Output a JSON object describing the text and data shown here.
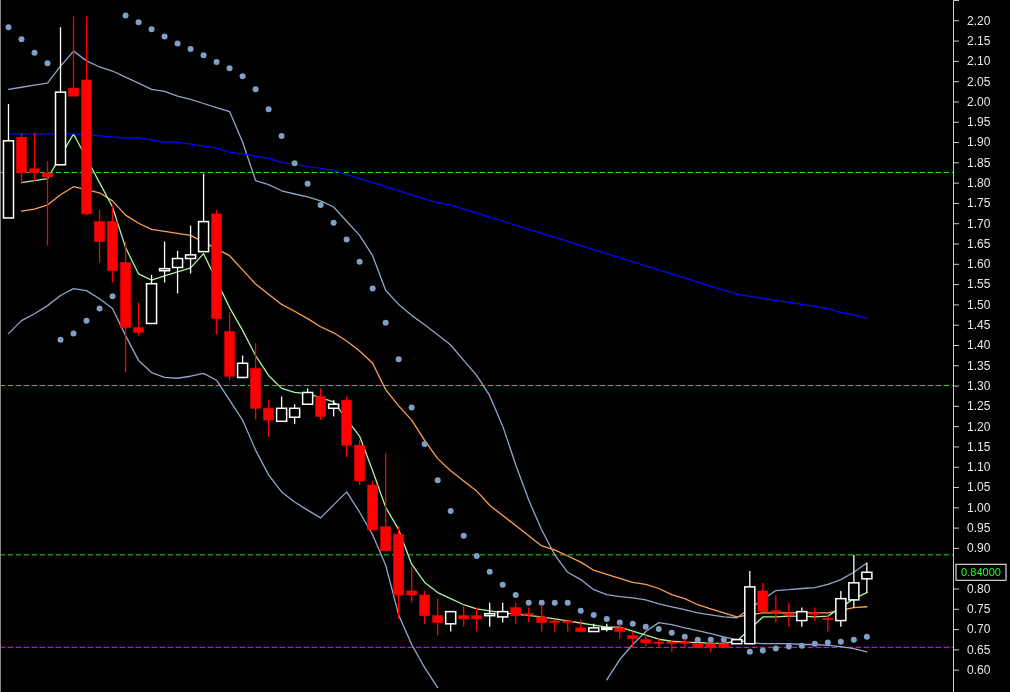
{
  "chart_data": {
    "type": "candlestick",
    "categories": [
      null,
      null,
      null,
      null,
      null,
      null,
      null,
      null,
      null,
      null,
      null,
      null,
      null,
      null,
      null,
      null,
      null,
      null,
      null,
      null,
      null,
      null,
      null,
      null,
      null,
      null,
      null,
      null,
      null,
      null,
      null,
      null,
      null,
      null,
      null,
      null,
      null,
      null,
      null,
      null,
      null,
      null,
      null,
      null,
      null,
      null,
      null,
      null,
      null,
      null,
      null,
      null,
      null,
      null,
      null,
      null,
      null,
      null,
      null,
      null,
      null,
      null,
      null,
      null,
      null,
      null,
      null
    ],
    "ohlc": [
      [
        1.713,
        1.994,
        1.713,
        1.903
      ],
      [
        1.912,
        1.922,
        1.797,
        1.824
      ],
      [
        1.834,
        1.922,
        1.804,
        1.824
      ],
      [
        1.824,
        1.853,
        1.645,
        1.814
      ],
      [
        1.844,
        2.183,
        1.844,
        2.023
      ],
      [
        2.033,
        2.21,
        2.013,
        2.013
      ],
      [
        2.053,
        2.21,
        1.72,
        1.723
      ],
      [
        1.704,
        1.733,
        1.603,
        1.655
      ],
      [
        1.704,
        1.743,
        1.554,
        1.583
      ],
      [
        1.603,
        1.655,
        1.333,
        1.443
      ],
      [
        1.443,
        1.504,
        1.423,
        1.431
      ],
      [
        1.453,
        1.573,
        1.453,
        1.551
      ],
      [
        1.583,
        1.655,
        1.554,
        1.588
      ],
      [
        1.591,
        1.632,
        1.527,
        1.613
      ],
      [
        1.613,
        1.694,
        1.576,
        1.622
      ],
      [
        1.63,
        1.822,
        1.63,
        1.704
      ],
      [
        1.723,
        1.733,
        1.426,
        1.465
      ],
      [
        1.433,
        1.482,
        1.313,
        1.323
      ],
      [
        1.32,
        1.374,
        1.32,
        1.355
      ],
      [
        1.342,
        1.404,
        1.217,
        1.244
      ],
      [
        1.244,
        1.264,
        1.173,
        1.215
      ],
      [
        1.212,
        1.273,
        1.212,
        1.244
      ],
      [
        1.222,
        1.254,
        1.205,
        1.244
      ],
      [
        1.254,
        1.293,
        1.254,
        1.283
      ],
      [
        1.273,
        1.293,
        1.215,
        1.224
      ],
      [
        1.244,
        1.264,
        1.224,
        1.254
      ],
      [
        1.264,
        1.273,
        1.124,
        1.153
      ],
      [
        1.153,
        1.165,
        1.055,
        1.065
      ],
      [
        1.055,
        1.065,
        0.944,
        0.944
      ],
      [
        0.952,
        1.133,
        0.893,
        0.893
      ],
      [
        0.934,
        0.954,
        0.725,
        0.784
      ],
      [
        0.794,
        0.853,
        0.765,
        0.784
      ],
      [
        0.784,
        0.794,
        0.713,
        0.733
      ],
      [
        0.733,
        0.775,
        0.684,
        0.716
      ],
      [
        0.713,
        0.743,
        0.694,
        0.743
      ],
      [
        0.733,
        0.76,
        0.706,
        0.725
      ],
      [
        0.733,
        0.753,
        0.694,
        0.725
      ],
      [
        0.733,
        0.765,
        0.706,
        0.738
      ],
      [
        0.73,
        0.765,
        0.716,
        0.743
      ],
      [
        0.753,
        0.765,
        0.713,
        0.733
      ],
      [
        0.738,
        0.753,
        0.716,
        0.735
      ],
      [
        0.73,
        0.76,
        0.694,
        0.716
      ],
      [
        0.72,
        0.725,
        0.694,
        0.718
      ],
      [
        0.72,
        0.723,
        0.694,
        0.718
      ],
      [
        0.703,
        0.723,
        0.694,
        0.694
      ],
      [
        0.694,
        0.713,
        0.694,
        0.703
      ],
      [
        0.701,
        0.713,
        0.694,
        0.703
      ],
      [
        0.703,
        0.713,
        0.676,
        0.694
      ],
      [
        0.684,
        0.694,
        0.654,
        0.676
      ],
      [
        0.674,
        0.686,
        0.657,
        0.666
      ],
      [
        0.668,
        0.676,
        0.654,
        0.666
      ],
      [
        0.668,
        0.674,
        0.644,
        0.666
      ],
      [
        0.668,
        0.676,
        0.654,
        0.666
      ],
      [
        0.664,
        0.664,
        0.654,
        0.654
      ],
      [
        0.664,
        0.664,
        0.644,
        0.654
      ],
      [
        0.664,
        0.664,
        0.654,
        0.654
      ],
      [
        0.664,
        0.676,
        0.664,
        0.674
      ],
      [
        0.664,
        0.843,
        0.664,
        0.804
      ],
      [
        0.794,
        0.814,
        0.743,
        0.743
      ],
      [
        0.745,
        0.784,
        0.716,
        0.743
      ],
      [
        0.738,
        0.765,
        0.706,
        0.735
      ],
      [
        0.721,
        0.753,
        0.706,
        0.743
      ],
      [
        0.74,
        0.753,
        0.72,
        0.738
      ],
      [
        0.727,
        0.735,
        0.694,
        0.725
      ],
      [
        0.721,
        0.794,
        0.706,
        0.775
      ],
      [
        0.772,
        0.883,
        0.753,
        0.814
      ],
      [
        0.824,
        0.863,
        0.789,
        0.84
      ]
    ],
    "colors": [
      "#ffffff",
      "#ff0000",
      "#ff0000",
      "#ff0000",
      "#ffffff",
      "#ff0000",
      "#ff0000",
      "#ff0000",
      "#ff0000",
      "#ff0000",
      "#ff0000",
      "#ffffff",
      "#ffffff",
      "#ffffff",
      "#ffffff",
      "#ffffff",
      "#ff0000",
      "#ff0000",
      "#ffffff",
      "#ff0000",
      "#ff0000",
      "#ffffff",
      "#ffffff",
      "#ffffff",
      "#ff0000",
      "#ffffff",
      "#ff0000",
      "#ff0000",
      "#ff0000",
      "#ff0000",
      "#ff0000",
      "#ff0000",
      "#ff0000",
      "#ff0000",
      "#ffffff",
      "#ff0000",
      "#ff0000",
      "#ffffff",
      "#ffffff",
      "#ff0000",
      "#ff0000",
      "#ff0000",
      "#ff0000",
      "#ff0000",
      "#ff0000",
      "#ffffff",
      "#ffffff",
      "#ff0000",
      "#ff0000",
      "#ff0000",
      "#ff0000",
      "#ff0000",
      "#ff0000",
      "#ff0000",
      "#ff0000",
      "#ff0000",
      "#ffffff",
      "#ffffff",
      "#ff0000",
      "#ff0000",
      "#ff0000",
      "#ffffff",
      "#ff0000",
      "#ff0000",
      "#ffffff",
      "#ffffff",
      "#ffffff"
    ],
    "series": [
      {
        "type": "line",
        "color": "#8ea6c8",
        "values": [
          2.03,
          2.035,
          2.04,
          2.045,
          2.087,
          2.124,
          2.1,
          2.085,
          2.075,
          2.06,
          2.045,
          2.03,
          2.025,
          2.013,
          2.005,
          1.995,
          1.985,
          1.975,
          1.9,
          1.805,
          1.795,
          1.78,
          1.772,
          1.765,
          1.755,
          1.74,
          1.705,
          1.67,
          1.62,
          1.535,
          1.5,
          1.473,
          1.45,
          1.425,
          1.4,
          1.362,
          1.325,
          1.275,
          1.2,
          1.105,
          1.018,
          0.944,
          0.883,
          0.84,
          0.822,
          0.797,
          0.785,
          0.78,
          0.777,
          0.772,
          0.762,
          0.755,
          0.748,
          0.74,
          0.735,
          0.73,
          0.728,
          null,
          null,
          0.795,
          0.797,
          0.8,
          0.802,
          0.81,
          0.822,
          0.84,
          0.863
        ]
      },
      {
        "type": "line",
        "color": "#8ea6c8",
        "values": [
          1.428,
          1.46,
          1.477,
          1.497,
          1.522,
          1.539,
          1.534,
          1.514,
          1.49,
          1.423,
          1.362,
          1.332,
          1.32,
          1.318,
          1.323,
          1.33,
          1.313,
          1.264,
          1.215,
          1.141,
          1.08,
          1.038,
          1.013,
          0.993,
          0.974,
          1.006,
          1.038,
          0.988,
          0.932,
          0.858,
          0.735,
          0.662,
          0.605,
          0.556,
          null,
          null,
          null,
          null,
          null,
          null,
          null,
          null,
          null,
          null,
          null,
          null,
          0.575,
          0.625,
          0.662,
          0.694,
          0.716,
          0.711,
          0.703,
          0.696,
          0.689,
          0.681,
          0.674,
          0.666,
          0.664,
          0.664,
          0.664,
          0.662,
          0.662,
          0.66,
          0.657,
          0.652,
          0.644
        ]
      },
      {
        "type": "line",
        "color": "#ff9f50",
        "values": [
          null,
          1.73,
          1.735,
          1.745,
          1.77,
          1.79,
          null,
          1.775,
          1.755,
          1.72,
          1.7,
          1.685,
          1.68,
          1.675,
          1.67,
          null,
          null,
          1.62,
          1.585,
          1.55,
          1.525,
          1.5,
          1.483,
          1.465,
          1.445,
          1.43,
          1.41,
          1.385,
          1.355,
          1.29,
          1.25,
          1.215,
          1.165,
          1.12,
          1.09,
          1.065,
          1.04,
          1.005,
          0.98,
          0.955,
          0.93,
          0.905,
          0.895,
          0.88,
          0.865,
          0.845,
          0.835,
          0.825,
          0.815,
          0.81,
          0.8,
          0.785,
          0.775,
          0.76,
          0.75,
          0.74,
          0.73,
          null,
          0.74,
          0.74,
          0.74,
          0.74,
          0.74,
          0.74,
          null,
          0.753,
          0.755
        ]
      },
      {
        "type": "line",
        "color": "#a8f59a",
        "values": [
          null,
          1.8,
          1.805,
          1.81,
          null,
          1.92,
          null,
          1.8,
          1.74,
          1.64,
          1.575,
          1.56,
          1.57,
          1.58,
          1.59,
          1.625,
          null,
          1.492,
          1.436,
          1.374,
          1.325,
          1.293,
          1.283,
          1.28,
          null,
          1.26,
          null,
          1.175,
          1.09,
          1.0,
          0.945,
          0.86,
          0.815,
          0.79,
          0.775,
          0.76,
          0.75,
          0.745,
          0.74,
          null,
          null,
          0.73,
          0.725,
          0.72,
          0.715,
          0.71,
          0.705,
          0.705,
          0.695,
          0.685,
          0.675,
          0.67,
          0.668,
          0.667,
          0.665,
          0.665,
          0.67,
          null,
          0.73,
          0.73,
          0.732,
          0.732,
          0.73,
          0.732,
          null,
          0.775,
          0.79
        ]
      },
      {
        "type": "line",
        "color": "#0000ff",
        "values": [
          1.92,
          1.92,
          1.92,
          1.92,
          null,
          1.92,
          null,
          1.915,
          1.913,
          1.91,
          1.91,
          1.905,
          1.9,
          1.9,
          1.895,
          1.89,
          1.885,
          1.875,
          1.87,
          1.865,
          1.86,
          1.85,
          1.845,
          1.84,
          1.835,
          1.83,
          1.82,
          1.81,
          1.8,
          1.79,
          1.78,
          1.77,
          1.76,
          1.75,
          1.745,
          1.735,
          1.725,
          1.715,
          1.705,
          1.695,
          1.685,
          1.675,
          1.665,
          1.655,
          1.645,
          1.635,
          1.625,
          1.615,
          1.605,
          1.595,
          1.585,
          1.575,
          1.565,
          1.555,
          1.545,
          1.535,
          1.525,
          1.52,
          1.515,
          1.51,
          1.505,
          1.5,
          1.495,
          1.49,
          1.48,
          1.475,
          1.465
        ]
      },
      {
        "type": "scatter",
        "color": "#7f9fc4",
        "marker": "circle",
        "values": [
          2.183,
          2.153,
          2.12,
          2.094,
          1.413,
          1.428,
          1.46,
          1.49,
          1.52,
          2.212,
          2.195,
          2.178,
          2.16,
          2.143,
          2.129,
          2.114,
          2.097,
          2.082,
          2.062,
          2.03,
          1.981,
          1.915,
          1.848,
          1.797,
          1.745,
          1.701,
          1.66,
          1.605,
          1.539,
          1.455,
          1.365,
          1.246,
          1.156,
          1.067,
          0.991,
          0.93,
          0.88,
          0.841,
          0.809,
          0.784,
          0.765,
          0.765,
          0.765,
          0.765,
          0.745,
          0.735,
          0.725,
          0.716,
          0.713,
          0.706,
          0.7,
          0.691,
          0.681,
          0.674,
          0.674,
          0.674,
          null,
          0.644,
          0.647,
          0.652,
          0.657,
          0.659,
          0.664,
          0.667,
          0.669,
          0.674,
          0.681
        ]
      }
    ],
    "ylim": [
      0.545,
      2.25
    ],
    "yticks": [
      {
        "value": 0.6,
        "label": "0.60"
      },
      {
        "value": 0.65,
        "label": "0.65"
      },
      {
        "value": 0.7,
        "label": "0.70"
      },
      {
        "value": 0.75,
        "label": "0.75"
      },
      {
        "value": 0.8,
        "label": "0.80"
      },
      {
        "value": 0.9,
        "label": "0.90"
      },
      {
        "value": 0.95,
        "label": "0.95"
      },
      {
        "value": 1.0,
        "label": "1.00"
      },
      {
        "value": 1.05,
        "label": "1.05"
      },
      {
        "value": 1.1,
        "label": "1.10"
      },
      {
        "value": 1.15,
        "label": "1.15"
      },
      {
        "value": 1.2,
        "label": "1.20"
      },
      {
        "value": 1.25,
        "label": "1.25"
      },
      {
        "value": 1.3,
        "label": "1.30"
      },
      {
        "value": 1.35,
        "label": "1.35"
      },
      {
        "value": 1.4,
        "label": "1.40"
      },
      {
        "value": 1.45,
        "label": "1.45"
      },
      {
        "value": 1.5,
        "label": "1.50"
      },
      {
        "value": 1.55,
        "label": "1.55"
      },
      {
        "value": 1.6,
        "label": "1.60"
      },
      {
        "value": 1.65,
        "label": "1.65"
      },
      {
        "value": 1.7,
        "label": "1.70"
      },
      {
        "value": 1.75,
        "label": "1.75"
      },
      {
        "value": 1.8,
        "label": "1.80"
      },
      {
        "value": 1.85,
        "label": "1.85"
      },
      {
        "value": 1.9,
        "label": "1.90"
      },
      {
        "value": 1.95,
        "label": "1.95"
      },
      {
        "value": 2.0,
        "label": "2.00"
      },
      {
        "value": 2.05,
        "label": "2.05"
      },
      {
        "value": 2.1,
        "label": "2.10"
      },
      {
        "value": 2.15,
        "label": "2.15"
      },
      {
        "value": 2.2,
        "label": "2.20"
      }
    ],
    "tick_labels": "y",
    "ref_lines": [
      {
        "axis": "y",
        "value": 1.825,
        "color": "#22dd22",
        "line_style": "dashed"
      },
      {
        "axis": "y",
        "value": 1.3,
        "color": "#22dd22",
        "line_style": "dashed"
      },
      {
        "axis": "y",
        "value": 0.883,
        "color": "#22dd22",
        "line_style": "dashed"
      },
      {
        "axis": "y",
        "value": 0.655,
        "color": "#ff00ff",
        "line_style": "dashed"
      }
    ],
    "annotations": [
      "0.84000"
    ]
  }
}
